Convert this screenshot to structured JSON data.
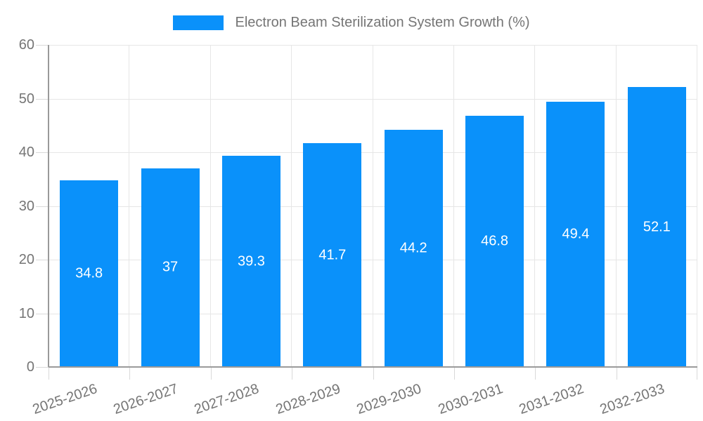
{
  "legend": {
    "label": "Electron Beam Sterilization System Growth (%)"
  },
  "chart_data": {
    "type": "bar",
    "title": "Electron Beam Sterilization System Growth (%)",
    "categories": [
      "2025-2026",
      "2026-2027",
      "2027-2028",
      "2028-2029",
      "2029-2030",
      "2030-2031",
      "2031-2032",
      "2032-2033"
    ],
    "values": [
      34.8,
      37,
      39.3,
      41.7,
      44.2,
      46.8,
      49.4,
      52.1
    ],
    "value_labels": [
      "34.8",
      "37",
      "39.3",
      "41.7",
      "44.2",
      "46.8",
      "49.4",
      "52.1"
    ],
    "xlabel": "",
    "ylabel": "",
    "ylim": [
      0,
      60
    ],
    "yticks": [
      0,
      10,
      20,
      30,
      40,
      50,
      60
    ],
    "grid": true,
    "legend_position": "top"
  },
  "colors": {
    "bar": "#0a91fa",
    "bar_value_text": "#ffffff",
    "grid": "#e6e6e6",
    "axis_line": "#9a9a9a",
    "tick_mark": "#d9d9d9",
    "axis_text": "#757575",
    "background": "#ffffff"
  }
}
